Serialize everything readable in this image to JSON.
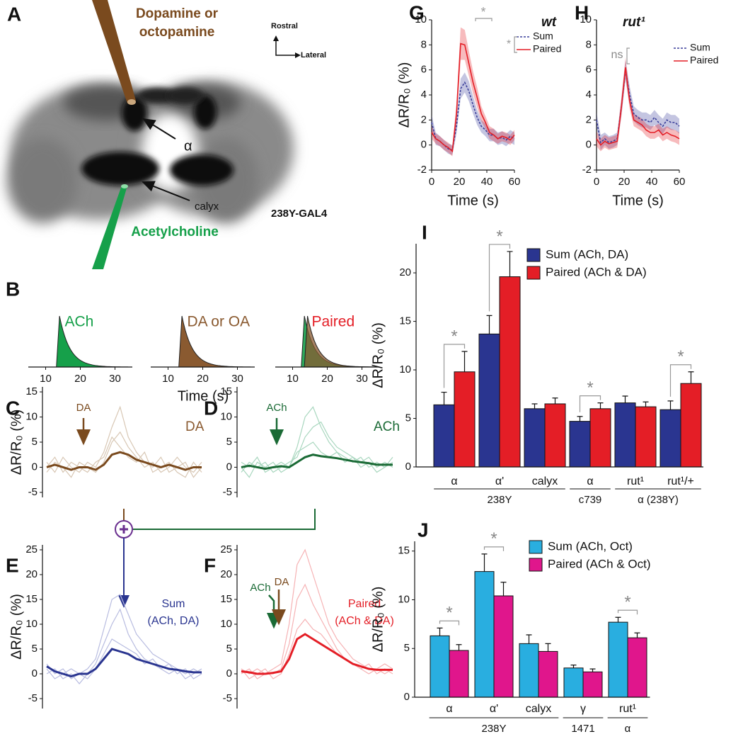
{
  "panel_a": {
    "label": "A",
    "drug": [
      "Dopamine or",
      "octopamine"
    ],
    "rostral": "Rostral",
    "lateral": "Lateral",
    "alpha": "α",
    "calyx": "calyx",
    "line": "238Y-GAL4",
    "ach": "Acetylcholine"
  },
  "panel_b": {
    "label": "B",
    "xlabel": "Time (s)",
    "xlim": [
      5,
      35
    ],
    "xticks": [
      10,
      20,
      30
    ],
    "schematics": [
      {
        "text": "ACh",
        "color": "#16a04a"
      },
      {
        "text": "DA or OA",
        "color": "#8a5a30"
      },
      {
        "text": "Paired",
        "color": "#e41e26"
      }
    ]
  },
  "chart_data": [
    {
      "type": "traces",
      "panel": "C",
      "ylabel": "ΔR/R₀ (%)",
      "ylim": [
        -6,
        16
      ],
      "yticks": [
        -5,
        0,
        5,
        10,
        15
      ],
      "annotations": [
        {
          "text": "DA",
          "color": "#7a4a1e"
        },
        {
          "text": "DA",
          "color": "#8a5a30"
        }
      ],
      "series": [
        {
          "color": "#d8c7b4",
          "values": [
            1,
            -1,
            2,
            0,
            -1,
            1,
            0,
            3,
            8,
            12,
            6,
            3,
            1,
            0,
            2,
            -1,
            0,
            1,
            -2,
            0
          ]
        },
        {
          "color": "#d8c7b4",
          "values": [
            -1,
            1,
            0,
            -2,
            1,
            0,
            -1,
            1,
            5,
            7,
            4,
            2,
            0,
            1,
            -1,
            0,
            2,
            0,
            -1,
            1
          ]
        },
        {
          "color": "#d8c7b4",
          "values": [
            0,
            2,
            -1,
            1,
            0,
            -1,
            1,
            2,
            6,
            4,
            2,
            1,
            3,
            -1,
            0,
            1,
            -1,
            -2,
            1,
            -1
          ]
        },
        {
          "color": "#7a4a1e",
          "bold": true,
          "values": [
            0,
            0.5,
            0,
            -0.5,
            0,
            0,
            -0.5,
            0.5,
            2.5,
            3,
            2.5,
            1.5,
            1,
            0.5,
            0,
            0.5,
            0,
            -0.5,
            0,
            0
          ]
        }
      ]
    },
    {
      "type": "traces",
      "panel": "D",
      "ylim": [
        -6,
        16
      ],
      "yticks": [
        -5,
        0,
        5,
        10,
        15
      ],
      "annotations": [
        {
          "text": "ACh",
          "color": "#1a6a35"
        },
        {
          "text": "ACh",
          "color": "#1a6a35"
        }
      ],
      "series": [
        {
          "color": "#a9d7bf",
          "values": [
            1,
            0,
            2,
            -1,
            0,
            1,
            0,
            4,
            10,
            12,
            8,
            5,
            3,
            2,
            1,
            2,
            0,
            1,
            0,
            1
          ]
        },
        {
          "color": "#a9d7bf",
          "values": [
            -1,
            1,
            0,
            1,
            -1,
            0,
            1,
            2,
            6,
            8,
            9,
            6,
            4,
            3,
            2,
            1,
            2,
            0,
            1,
            0
          ]
        },
        {
          "color": "#a9d7bf",
          "values": [
            0,
            -2,
            1,
            0,
            1,
            -1,
            0,
            3,
            4,
            5,
            3,
            2,
            3,
            1,
            2,
            0,
            1,
            -1,
            0,
            2
          ]
        },
        {
          "color": "#1a6a35",
          "bold": true,
          "values": [
            0,
            0.3,
            0,
            -0.3,
            0,
            0.2,
            0,
            1,
            2,
            2.5,
            2.2,
            2,
            1.8,
            1.5,
            1.2,
            1,
            0.8,
            0.5,
            0.5,
            0.5
          ]
        }
      ]
    },
    {
      "type": "traces",
      "panel": "E",
      "ylabel": "ΔR/R₀ (%)",
      "ylim": [
        -7,
        26
      ],
      "yticks": [
        -5,
        0,
        5,
        10,
        15,
        20,
        25
      ],
      "annotations": [
        {
          "text": "Sum",
          "color": "#2a3590"
        },
        {
          "text": "(ACh, DA)",
          "color": "#2a3590"
        }
      ],
      "series": [
        {
          "color": "#b8bce0",
          "values": [
            2,
            0,
            1,
            -1,
            0,
            1,
            3,
            9,
            15,
            16,
            12,
            8,
            6,
            4,
            3,
            2,
            1,
            0,
            1,
            0
          ]
        },
        {
          "color": "#b8bce0",
          "values": [
            0,
            1,
            -1,
            0,
            -2,
            0,
            2,
            6,
            10,
            13,
            8,
            5,
            3,
            2,
            1,
            0,
            1,
            -1,
            0,
            1
          ]
        },
        {
          "color": "#b8bce0",
          "values": [
            1,
            -1,
            0,
            1,
            0,
            -1,
            1,
            4,
            7,
            6,
            5,
            4,
            2,
            3,
            1,
            2,
            0,
            1,
            -1,
            0
          ]
        },
        {
          "color": "#2a3590",
          "bold": true,
          "values": [
            1.5,
            0.5,
            0,
            -0.5,
            0,
            0,
            1,
            3,
            5,
            4.5,
            4,
            3,
            2.5,
            2,
            1.5,
            1,
            0.8,
            0.5,
            0.3,
            0.3
          ]
        }
      ]
    },
    {
      "type": "traces",
      "panel": "F",
      "ylim": [
        -7,
        26
      ],
      "yticks": [
        -5,
        0,
        5,
        10,
        15,
        20,
        25
      ],
      "annotations": [
        {
          "text": "Paired",
          "color": "#e41e26"
        },
        {
          "text": "(ACh & DA)",
          "color": "#e41e26"
        },
        {
          "text": "ACh",
          "color": "#1a6a35"
        },
        {
          "text": "DA",
          "color": "#7a4a1e"
        }
      ],
      "series": [
        {
          "color": "#f6b2b4",
          "values": [
            1,
            0,
            1,
            0,
            1,
            2,
            10,
            22,
            25,
            20,
            15,
            10,
            7,
            5,
            3,
            2,
            1,
            1,
            2,
            1
          ]
        },
        {
          "color": "#f6b2b4",
          "values": [
            0,
            1,
            -1,
            0,
            0,
            1,
            6,
            15,
            18,
            14,
            11,
            8,
            5,
            3,
            2,
            1,
            0,
            1,
            0,
            1
          ]
        },
        {
          "color": "#f6b2b4",
          "values": [
            1,
            -1,
            0,
            1,
            -1,
            0,
            4,
            9,
            11,
            9,
            8,
            6,
            4,
            3,
            2,
            1,
            2,
            0,
            1,
            0
          ]
        },
        {
          "color": "#e41e26",
          "bold": true,
          "values": [
            0.5,
            0.3,
            0,
            0,
            0.2,
            0.5,
            3,
            7,
            8,
            7,
            6,
            5,
            4,
            3,
            2,
            1.5,
            1,
            0.8,
            0.8,
            0.8
          ]
        }
      ]
    },
    {
      "type": "line",
      "panel": "G",
      "title": "wt",
      "xlabel": "Time (s)",
      "ylabel": "ΔR/R₀ (%)",
      "xlim": [
        0,
        60
      ],
      "xticks": [
        0,
        20,
        40,
        60
      ],
      "ylim": [
        -2,
        10
      ],
      "yticks": [
        -2,
        0,
        2,
        4,
        6,
        8,
        10
      ],
      "annotations": [
        "*",
        "*"
      ],
      "x": [
        0,
        3,
        6,
        9,
        12,
        15,
        18,
        21,
        24,
        27,
        30,
        33,
        36,
        39,
        42,
        45,
        48,
        51,
        54,
        57,
        60
      ],
      "series": [
        {
          "name": "Sum",
          "color": "#3a3f9a",
          "dashed": true,
          "values": [
            1.8,
            0.5,
            0.3,
            0,
            -0.3,
            -0.4,
            1.5,
            4.5,
            5.0,
            4.3,
            3.2,
            2.2,
            1.5,
            1.2,
            0.8,
            0.8,
            0.5,
            0.6,
            0.4,
            0.7,
            0.5
          ],
          "errors": [
            0.6,
            0.5,
            0.4,
            0.4,
            0.4,
            0.4,
            0.6,
            0.8,
            0.8,
            0.8,
            0.7,
            0.6,
            0.5,
            0.5,
            0.5,
            0.5,
            0.5,
            0.5,
            0.5,
            0.5,
            0.5
          ]
        },
        {
          "name": "Paired",
          "color": "#e41e26",
          "dashed": false,
          "values": [
            1.0,
            0.5,
            0.3,
            0,
            -0.2,
            -0.5,
            2.5,
            8.1,
            8.0,
            6.5,
            5.0,
            3.8,
            2.5,
            1.8,
            1.0,
            0.8,
            0.5,
            0.7,
            0.6,
            0.4,
            0.8
          ],
          "errors": [
            0.5,
            0.4,
            0.4,
            0.4,
            0.4,
            0.4,
            0.8,
            1.3,
            1.2,
            1.0,
            0.9,
            0.8,
            0.6,
            0.5,
            0.5,
            0.5,
            0.4,
            0.4,
            0.4,
            0.4,
            0.4
          ]
        }
      ]
    },
    {
      "type": "line",
      "panel": "H",
      "title": "rut¹",
      "xlabel": "Time (s)",
      "xlim": [
        0,
        60
      ],
      "xticks": [
        0,
        20,
        40,
        60
      ],
      "ylim": [
        -2,
        10
      ],
      "yticks": [
        -2,
        0,
        2,
        4,
        6,
        8,
        10
      ],
      "annotations": [
        "ns"
      ],
      "x": [
        0,
        3,
        6,
        9,
        12,
        15,
        18,
        21,
        24,
        27,
        30,
        33,
        36,
        39,
        42,
        45,
        48,
        51,
        54,
        57,
        60
      ],
      "series": [
        {
          "name": "Sum",
          "color": "#3a3f9a",
          "dashed": true,
          "values": [
            2.0,
            0.2,
            0.5,
            0.2,
            0.3,
            0.5,
            3.0,
            6.0,
            4.0,
            2.5,
            2.2,
            2.0,
            2.0,
            1.8,
            2.2,
            1.8,
            1.5,
            2.0,
            1.8,
            1.8,
            1.5
          ],
          "errors": [
            0.6,
            0.6,
            0.5,
            0.5,
            0.5,
            0.5,
            0.7,
            0.8,
            0.7,
            0.6,
            0.6,
            0.6,
            0.6,
            0.6,
            0.6,
            0.6,
            0.6,
            0.6,
            0.6,
            0.6,
            0.6
          ]
        },
        {
          "name": "Paired",
          "color": "#e41e26",
          "dashed": false,
          "values": [
            0.5,
            0,
            0.3,
            0.1,
            0.2,
            0.3,
            3.0,
            6.2,
            3.5,
            2.0,
            1.8,
            1.6,
            1.2,
            1.0,
            1.0,
            1.2,
            0.8,
            1.0,
            0.8,
            0.7,
            0.5
          ],
          "errors": [
            0.6,
            0.5,
            0.5,
            0.5,
            0.5,
            0.5,
            0.7,
            0.8,
            0.6,
            0.5,
            0.5,
            0.5,
            0.5,
            0.5,
            0.5,
            0.5,
            0.5,
            0.5,
            0.5,
            0.5,
            0.5
          ]
        }
      ]
    },
    {
      "type": "bar",
      "panel": "I",
      "ylabel": "ΔR/R₀ (%)",
      "ylim": [
        0,
        23
      ],
      "yticks": [
        0,
        5,
        10,
        15,
        20
      ],
      "legend": "upper right",
      "categories": [
        "α",
        "α'",
        "calyx",
        "α",
        "rut¹",
        "rut¹/+"
      ],
      "groups": [
        "238Y",
        "238Y",
        "238Y",
        "c739",
        "α (238Y)",
        "α (238Y)"
      ],
      "sig_label": "*",
      "significant": [
        true,
        true,
        false,
        true,
        false,
        true
      ],
      "series": [
        {
          "name": "Sum (ACh, DA)",
          "color": "#2a3590",
          "values": [
            6.4,
            13.7,
            6.0,
            4.7,
            6.6,
            5.9
          ],
          "errors": [
            1.3,
            1.9,
            0.5,
            0.5,
            0.7,
            0.9
          ]
        },
        {
          "name": "Paired (ACh & DA)",
          "color": "#e41e26",
          "values": [
            9.8,
            19.6,
            6.5,
            6.0,
            6.2,
            8.6
          ],
          "errors": [
            2.1,
            2.6,
            0.6,
            0.6,
            0.5,
            1.2
          ]
        }
      ]
    },
    {
      "type": "bar",
      "panel": "J",
      "ylabel": "ΔR/R₀ (%)",
      "ylim": [
        0,
        16
      ],
      "yticks": [
        0,
        5,
        10,
        15
      ],
      "legend": "upper right",
      "categories": [
        "α",
        "α'",
        "calyx",
        "γ",
        "rut¹"
      ],
      "groups": [
        "238Y",
        "238Y",
        "238Y",
        "1471",
        "α"
      ],
      "sig_label": "*",
      "significant": [
        true,
        true,
        false,
        false,
        true
      ],
      "series": [
        {
          "name": "Sum (ACh, Oct)",
          "color": "#29aee0",
          "values": [
            6.3,
            12.9,
            5.5,
            3.0,
            7.7
          ],
          "errors": [
            0.8,
            1.8,
            0.9,
            0.3,
            0.5
          ]
        },
        {
          "name": "Paired (ACh & Oct)",
          "color": "#e0168c",
          "values": [
            4.8,
            10.4,
            4.7,
            2.6,
            6.1
          ],
          "errors": [
            0.6,
            1.4,
            0.8,
            0.3,
            0.5
          ]
        }
      ]
    }
  ]
}
